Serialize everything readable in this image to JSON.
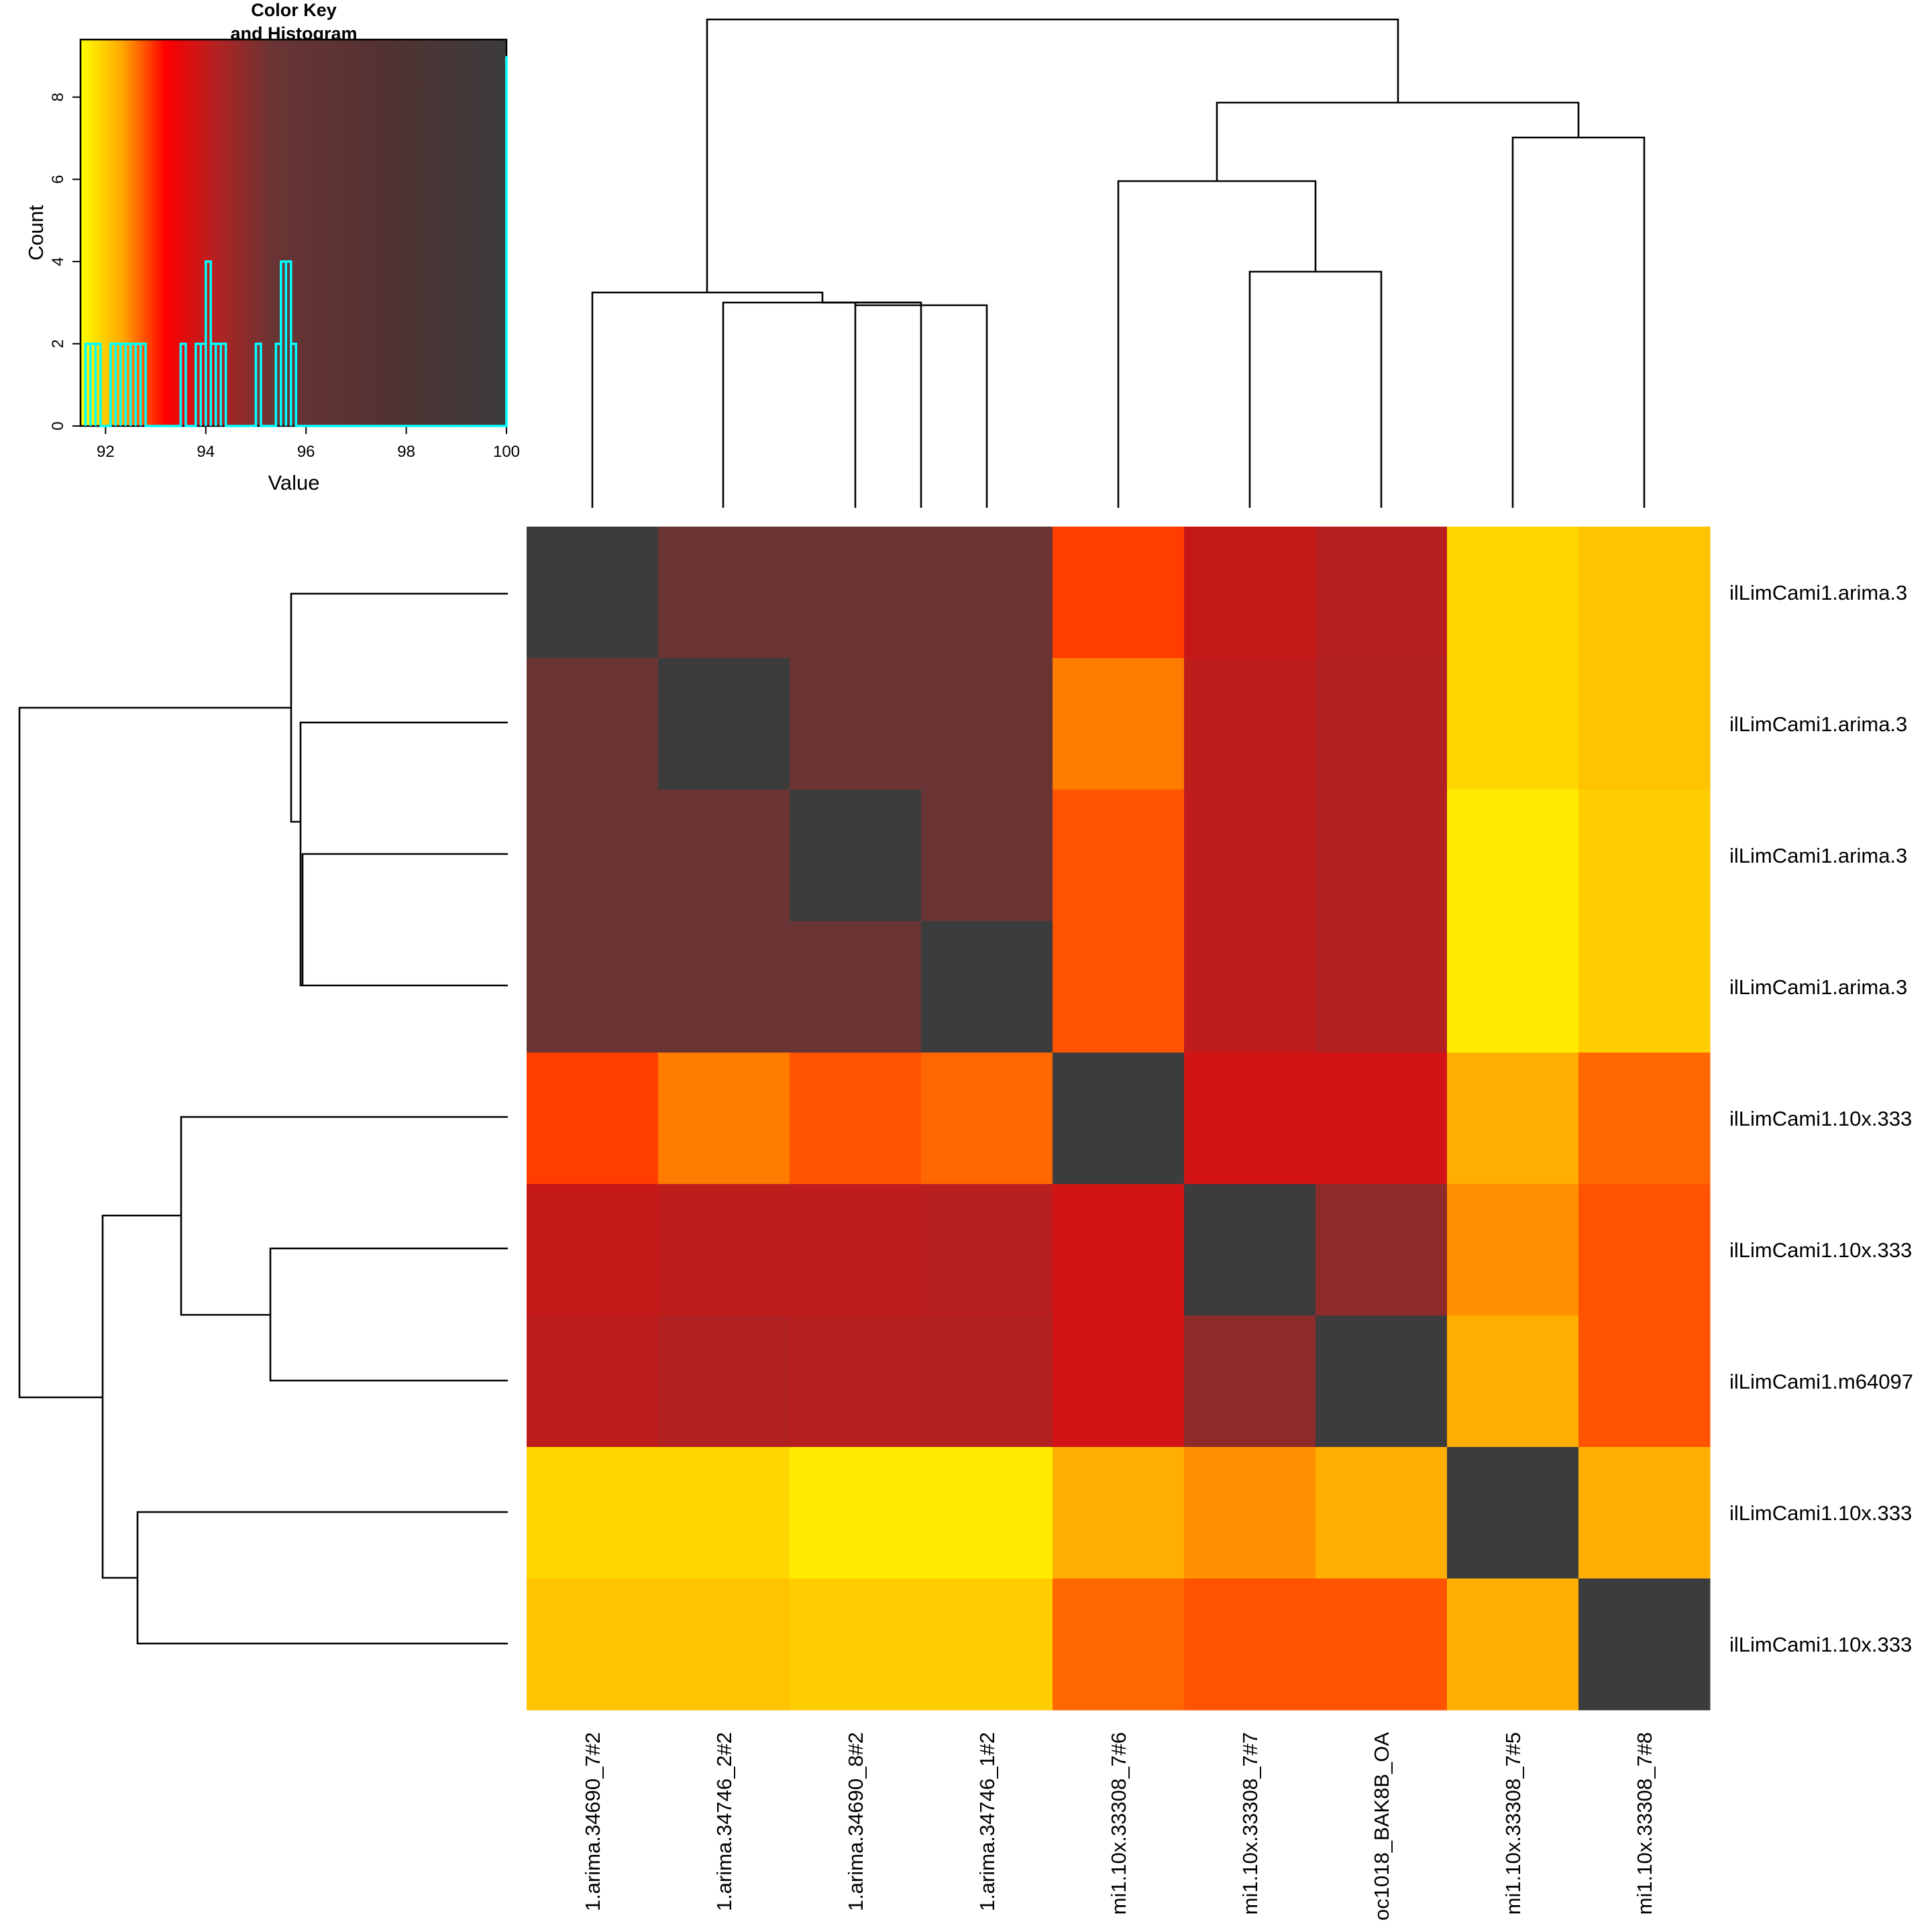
{
  "chart_data": {
    "type": "heatmap",
    "rows": [
      "ilLimCami1.arima.3",
      "ilLimCami1.arima.3",
      "ilLimCami1.arima.3",
      "ilLimCami1.arima.3",
      "ilLimCami1.10x.333",
      "ilLimCami1.10x.333",
      "ilLimCami1.m64097",
      "ilLimCami1.10x.333",
      "ilLimCami1.10x.333"
    ],
    "columns": [
      "1.arima.34690_7#2",
      "1.arima.34746_2#2",
      "1.arima.34690_8#2",
      "1.arima.34746_1#2",
      "mi1.10x.33308_7#6",
      "mi1.10x.33308_7#7",
      "oc1018_BAK8B_OA",
      "mi1.10x.33308_7#5",
      "mi1.10x.33308_7#8"
    ],
    "values": [
      [
        100,
        95.6,
        95.6,
        95.6,
        92.9,
        94.1,
        94.3,
        91.9,
        92.1
      ],
      [
        95.6,
        100,
        95.6,
        95.6,
        92.6,
        94.2,
        94.4,
        91.9,
        92.1
      ],
      [
        95.6,
        95.6,
        100,
        95.6,
        92.8,
        94.2,
        94.4,
        91.7,
        92.0
      ],
      [
        95.6,
        95.6,
        95.6,
        100,
        92.8,
        94.2,
        94.4,
        91.7,
        92.0
      ],
      [
        92.9,
        92.6,
        92.8,
        92.7,
        100,
        93.9,
        93.9,
        92.3,
        92.7
      ],
      [
        94.1,
        94.2,
        94.2,
        94.3,
        93.9,
        100,
        95.0,
        92.5,
        92.8
      ],
      [
        94.2,
        94.4,
        94.3,
        94.4,
        93.9,
        95.0,
        100,
        92.3,
        92.8
      ],
      [
        91.9,
        91.9,
        91.7,
        91.7,
        92.3,
        92.5,
        92.3,
        100,
        92.3
      ],
      [
        92.1,
        92.1,
        92.0,
        92.0,
        92.7,
        92.8,
        92.8,
        92.3,
        100
      ]
    ],
    "color_scale": [
      "#ffff00",
      "#ffa500",
      "#ff0000",
      "#b22222",
      "#6a3434",
      "#3c3c3c"
    ],
    "key": {
      "title_line1": "Color Key",
      "title_line2": "and Histogram",
      "xlabel": "Value",
      "ylabel": "Count",
      "xlim": [
        91.5,
        100
      ],
      "ylim": [
        0,
        9.4
      ],
      "xticks": [
        "92",
        "94",
        "96",
        "98",
        "100"
      ],
      "yticks": [
        "0",
        "2",
        "4",
        "6",
        "8"
      ],
      "histogram_color": "#00ffff",
      "histogram": [
        [
          91.6,
          2
        ],
        [
          91.7,
          2
        ],
        [
          91.8,
          2
        ],
        [
          91.9,
          0
        ],
        [
          92.0,
          0
        ],
        [
          92.1,
          2
        ],
        [
          92.2,
          2
        ],
        [
          92.3,
          2
        ],
        [
          92.4,
          2
        ],
        [
          92.5,
          2
        ],
        [
          92.6,
          2
        ],
        [
          92.7,
          2
        ],
        [
          92.8,
          0
        ],
        [
          92.9,
          0
        ],
        [
          93.0,
          0
        ],
        [
          93.1,
          0
        ],
        [
          93.2,
          0
        ],
        [
          93.3,
          0
        ],
        [
          93.4,
          0
        ],
        [
          93.5,
          2
        ],
        [
          93.6,
          0
        ],
        [
          93.7,
          0
        ],
        [
          93.8,
          2
        ],
        [
          93.9,
          2
        ],
        [
          94.0,
          4
        ],
        [
          94.1,
          2
        ],
        [
          94.2,
          2
        ],
        [
          94.3,
          2
        ],
        [
          94.4,
          0
        ],
        [
          94.5,
          0
        ],
        [
          94.6,
          0
        ],
        [
          94.7,
          0
        ],
        [
          94.8,
          0
        ],
        [
          94.9,
          0
        ],
        [
          95.0,
          2
        ],
        [
          95.1,
          0
        ],
        [
          95.2,
          0
        ],
        [
          95.3,
          0
        ],
        [
          95.4,
          2
        ],
        [
          95.5,
          4
        ],
        [
          95.6,
          4
        ],
        [
          95.7,
          2
        ],
        [
          95.8,
          0
        ],
        [
          99.9,
          0
        ],
        [
          100.0,
          9
        ]
      ]
    }
  }
}
